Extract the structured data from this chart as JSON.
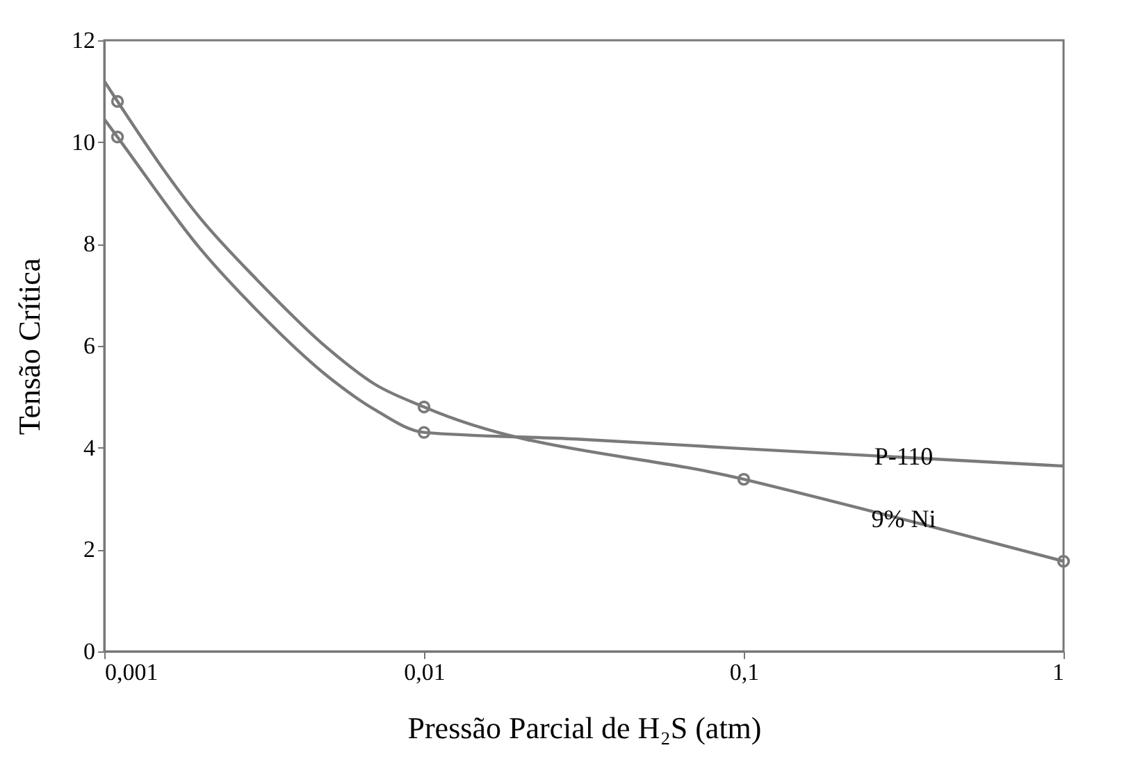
{
  "chart_data": {
    "type": "line",
    "xlabel": "Pressão Parcial de H₂S (atm)",
    "ylabel": "Tensão Crítica",
    "log": "x",
    "grid": false,
    "line_style": "solid",
    "xlim": [
      0.001,
      1
    ],
    "xticks": [
      {
        "value": 0.001,
        "label": "0,001"
      },
      {
        "value": 0.01,
        "label": "0,01"
      },
      {
        "value": 0.1,
        "label": "0,1"
      },
      {
        "value": 1,
        "label": "1"
      }
    ],
    "ylim": [
      0,
      12
    ],
    "yticks": [
      0,
      2,
      4,
      6,
      8,
      10,
      12
    ],
    "series": [
      {
        "name": "P-110",
        "color": "#7a7a7a",
        "marker": "none",
        "x": [
          0.001,
          0.0011,
          0.002,
          0.003,
          0.005,
          0.007,
          0.01,
          0.03,
          0.1,
          1
        ],
        "values": [
          10.45,
          10.1,
          7.9,
          6.7,
          5.4,
          4.75,
          4.3,
          4.17,
          3.98,
          3.64
        ]
      },
      {
        "name": "9% Ni",
        "color": "#7a7a7a",
        "marker": "none",
        "x": [
          0.001,
          0.0011,
          0.002,
          0.003,
          0.005,
          0.007,
          0.01,
          0.1,
          1
        ],
        "values": [
          11.2,
          10.8,
          8.5,
          7.3,
          5.95,
          5.25,
          4.8,
          3.38,
          1.77
        ]
      },
      {
        "type": "scatter",
        "marker": "circle",
        "color": "#7a7a7a",
        "x": [
          0.0011,
          0.01
        ],
        "values": [
          10.1,
          4.3
        ]
      },
      {
        "type": "scatter",
        "marker": "circle",
        "color": "#7a7a7a",
        "x": [
          0.0011,
          0.01,
          0.1,
          1
        ],
        "values": [
          10.8,
          4.8,
          3.38,
          1.77
        ]
      }
    ]
  }
}
